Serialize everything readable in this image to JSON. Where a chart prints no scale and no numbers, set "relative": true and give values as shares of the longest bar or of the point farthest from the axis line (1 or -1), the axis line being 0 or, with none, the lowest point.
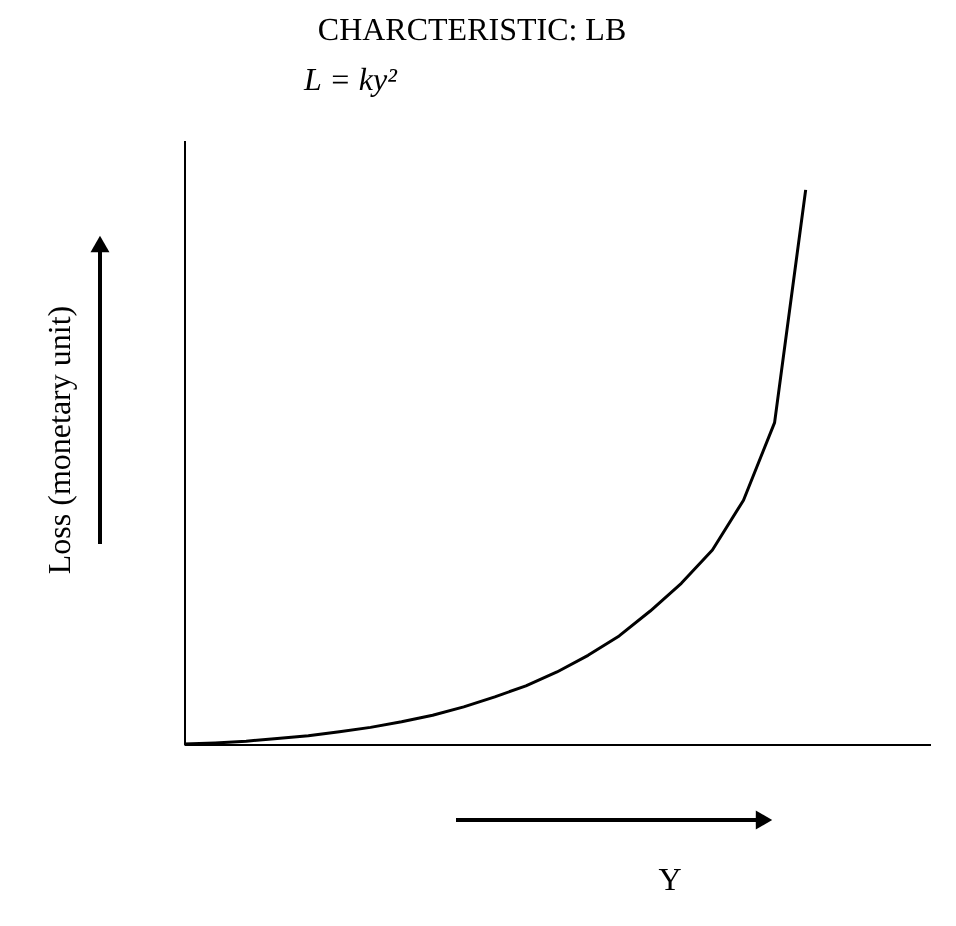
{
  "chart_data": {
    "type": "line",
    "title": "CHARCTERISTIC: LB",
    "annotations": [
      "L = ky²"
    ],
    "xlabel": "Y",
    "ylabel": "Loss (monetary unit)",
    "relative": true,
    "tick_labels": false,
    "color": "#000000",
    "categories": [
      null,
      null,
      null,
      null,
      null,
      null,
      null,
      null,
      null,
      null,
      null,
      null,
      null,
      null,
      null,
      null,
      null,
      null,
      null,
      null,
      null,
      null,
      null,
      null,
      null
    ],
    "values": [
      0,
      0.002,
      0.005,
      0.01,
      0.015,
      0.022,
      0.03,
      0.04,
      0.052,
      0.067,
      0.085,
      0.105,
      0.13,
      0.16,
      0.195,
      0.24,
      0.29,
      0.35,
      0.44,
      0.58,
      1.0,
      null,
      null,
      null,
      null
    ]
  }
}
